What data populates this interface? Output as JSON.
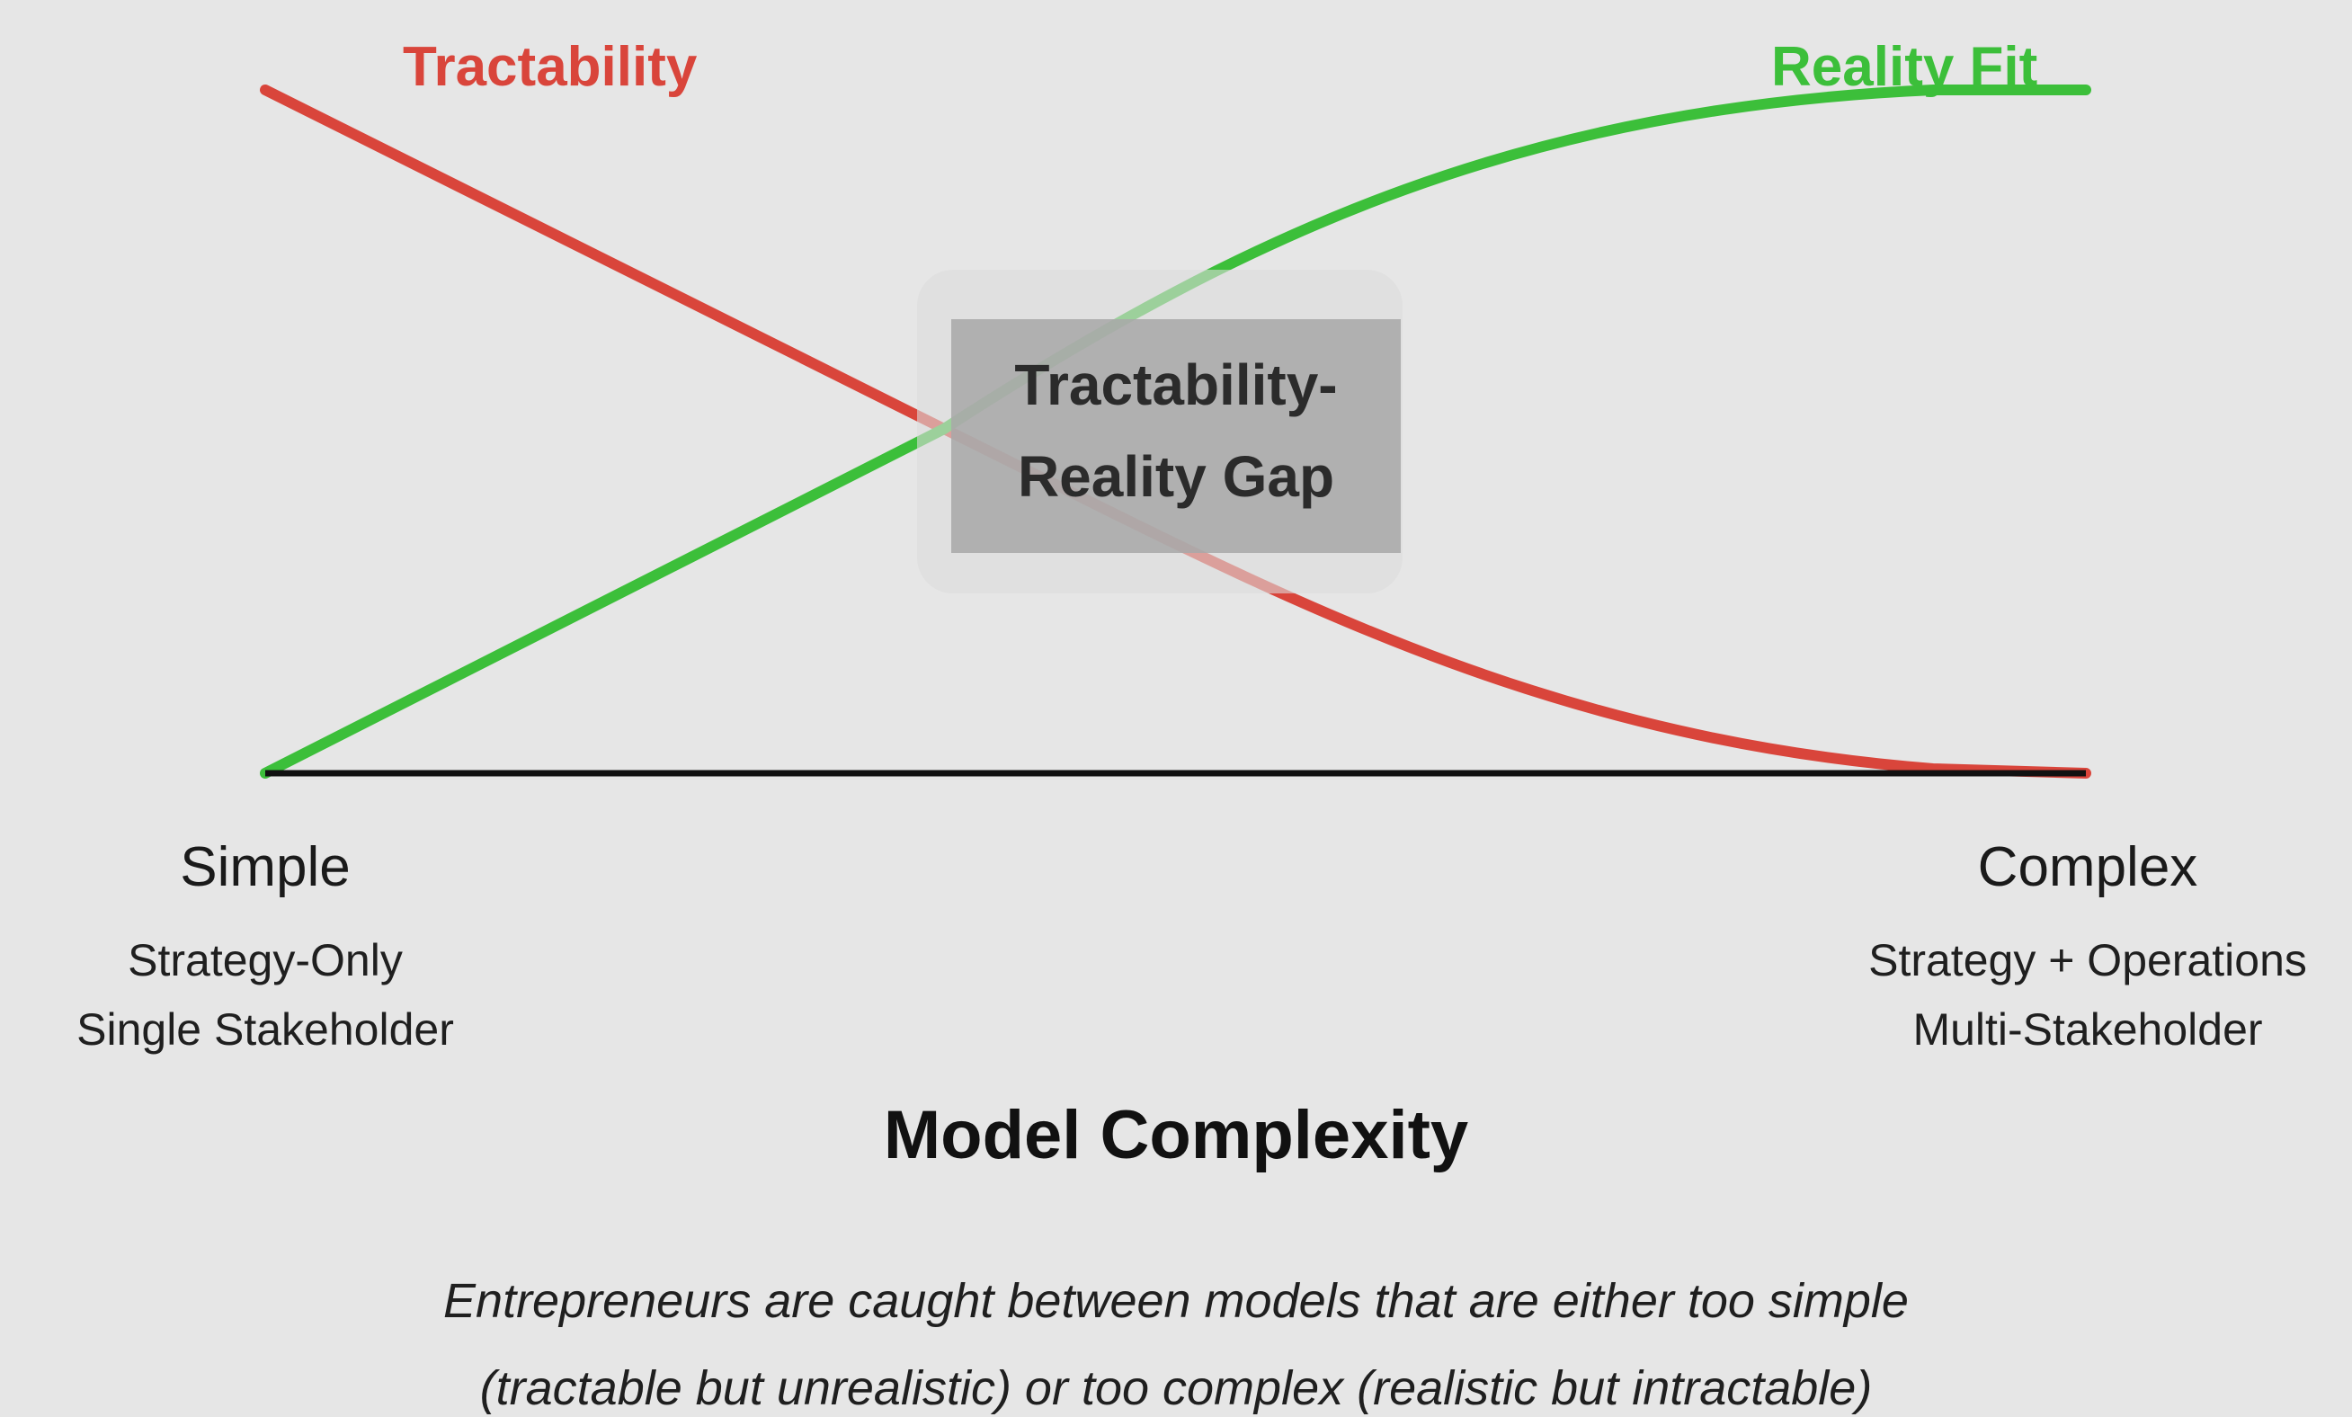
{
  "colors": {
    "background": "#e6e6e6",
    "tractability": "#d9453b",
    "reality_fit": "#3cbf3a",
    "axis": "#111111",
    "gap_box": "#a9a9a9"
  },
  "series": {
    "tractability_label": "Tractability",
    "reality_fit_label": "Reality Fit"
  },
  "gap": {
    "line1": "Tractability-",
    "line2": "Reality Gap"
  },
  "axis": {
    "left": {
      "title": "Simple",
      "sub1": "Strategy-Only",
      "sub2": "Single Stakeholder"
    },
    "right": {
      "title": "Complex",
      "sub1": "Strategy + Operations",
      "sub2": "Multi-Stakeholder"
    },
    "title": "Model Complexity"
  },
  "caption": {
    "line1": "Entrepreneurs are caught between models that are either too simple",
    "line2": "(tractable but unrealistic) or too complex (realistic but intractable)"
  }
}
